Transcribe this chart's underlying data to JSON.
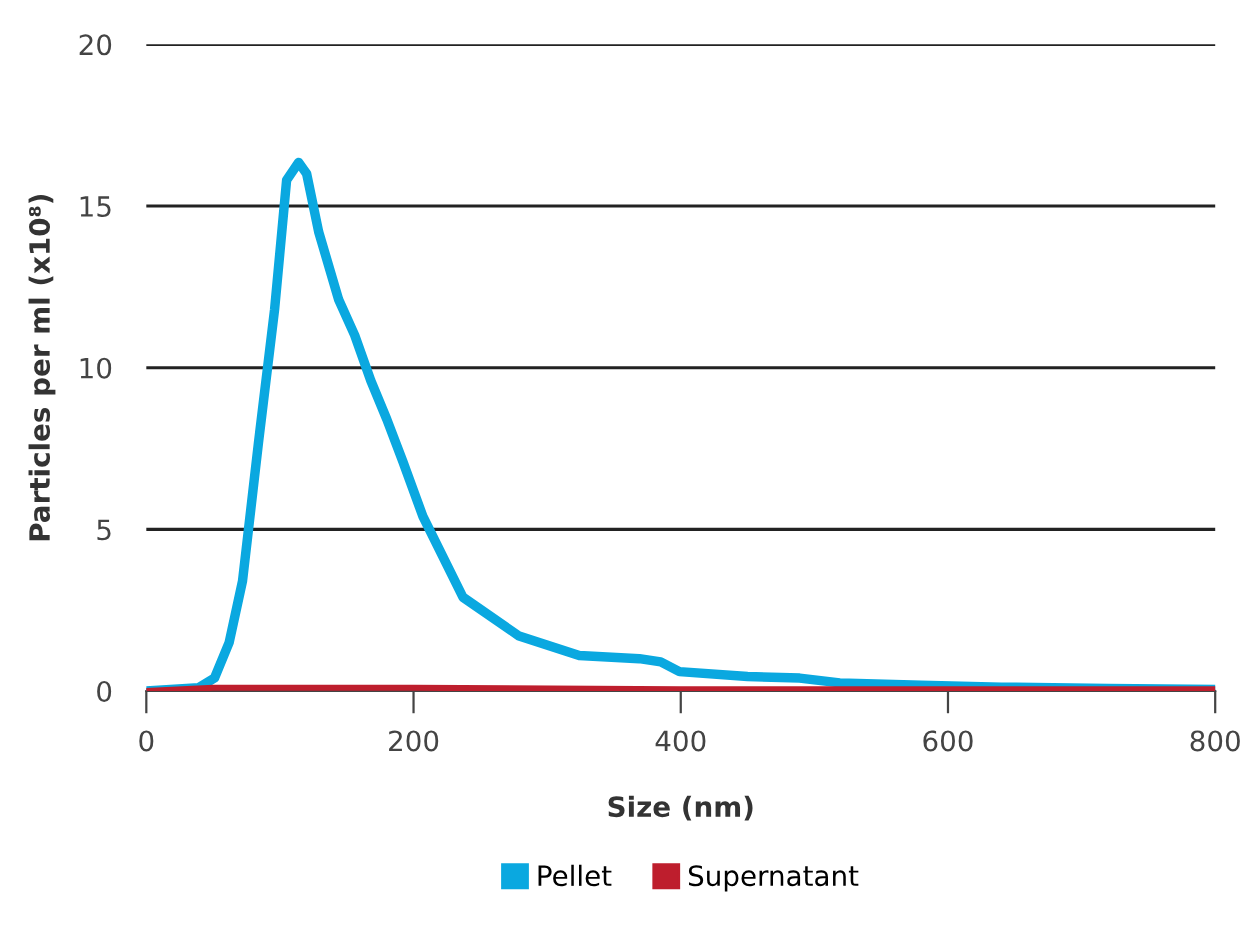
{
  "chart_data": {
    "type": "line",
    "xlabel": "Size (nm)",
    "ylabel": "Particles per ml (x10⁸)",
    "xlim": [
      0,
      800
    ],
    "ylim": [
      0,
      20
    ],
    "xticks": [
      0,
      200,
      400,
      600,
      800
    ],
    "yticks": [
      0,
      5,
      10,
      15,
      20
    ],
    "grid": "y",
    "legend": "bottom",
    "marker": "none",
    "line_style": "solid",
    "series": [
      {
        "name": "Pellet",
        "color": "#0aa8e0",
        "x": [
          0,
          39,
          51,
          62,
          72,
          84,
          96,
          105,
          114,
          120,
          129,
          144,
          156,
          168,
          180,
          192,
          207,
          237,
          279,
          324,
          369,
          385,
          399,
          450,
          489,
          519,
          580,
          640,
          720,
          800
        ],
        "values": [
          0,
          0.1,
          0.4,
          1.5,
          3.4,
          7.7,
          11.8,
          15.8,
          16.35,
          16.0,
          14.2,
          12.1,
          11.0,
          9.6,
          8.4,
          7.1,
          5.4,
          2.9,
          1.7,
          1.1,
          1.0,
          0.9,
          0.6,
          0.45,
          0.4,
          0.25,
          0.18,
          0.12,
          0.08,
          0.05
        ]
      },
      {
        "name": "Supernatant",
        "color": "#be1e2d",
        "x": [
          0,
          50,
          100,
          200,
          400,
          600,
          800
        ],
        "values": [
          0,
          0.1,
          0.1,
          0.1,
          0.05,
          0.05,
          0.05
        ]
      }
    ]
  }
}
